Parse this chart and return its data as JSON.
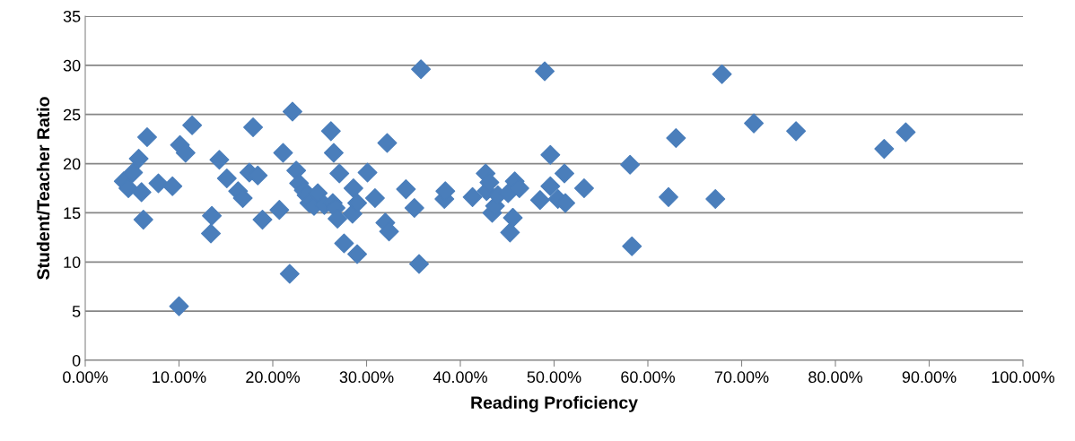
{
  "chart_data": {
    "type": "scatter",
    "xlabel": "Reading Proficiency",
    "ylabel": "Student/Teacher Ratio",
    "series": [
      {
        "color": "#4a7ebb",
        "x": [
          4.1,
          4.6,
          5.1,
          5.7,
          6.0,
          6.2,
          6.6,
          7.8,
          9.3,
          10.0,
          10.1,
          10.7,
          11.4,
          13.5,
          13.4,
          14.3,
          15.1,
          16.3,
          16.8,
          17.5,
          17.9,
          18.4,
          18.9,
          20.7,
          21.1,
          21.8,
          22.1,
          22.5,
          22.8,
          23.3,
          23.6,
          23.9,
          24.4,
          24.8,
          25.5,
          26.4,
          26.7,
          26.2,
          26.5,
          26.9,
          27.1,
          27.6,
          28.5,
          28.6,
          29.0,
          29.0,
          30.1,
          30.9,
          32.0,
          32.2,
          32.4,
          34.2,
          35.1,
          35.6,
          35.8,
          38.3,
          38.4,
          41.3,
          42.7,
          42.8,
          43.1,
          43.4,
          43.7,
          44.0,
          45.1,
          45.3,
          45.6,
          45.8,
          46.3,
          48.5,
          49.0,
          49.6,
          49.6,
          50.4,
          51.1,
          51.2,
          53.2,
          58.1,
          58.3,
          62.2,
          63.0,
          67.2,
          67.9,
          71.3,
          75.8,
          85.2,
          87.5
        ],
        "values": [
          18.2,
          17.5,
          19.1,
          20.5,
          17.1,
          14.3,
          22.7,
          18.0,
          17.7,
          5.5,
          21.9,
          21.1,
          23.9,
          14.7,
          12.9,
          20.4,
          18.5,
          17.2,
          16.5,
          19.1,
          23.7,
          18.8,
          14.3,
          15.3,
          21.1,
          8.8,
          25.3,
          19.3,
          18.0,
          17.3,
          16.8,
          16.0,
          15.7,
          17.0,
          15.8,
          16.0,
          15.5,
          23.3,
          21.1,
          14.4,
          19.0,
          11.9,
          14.9,
          17.5,
          10.8,
          16.0,
          19.1,
          16.5,
          14.0,
          22.1,
          13.1,
          17.4,
          15.5,
          9.8,
          29.6,
          16.4,
          17.2,
          16.6,
          19.0,
          17.2,
          18.1,
          15.0,
          15.7,
          16.8,
          17.0,
          13.0,
          14.5,
          18.2,
          17.5,
          16.3,
          29.4,
          17.7,
          20.9,
          16.4,
          19.0,
          16.0,
          17.5,
          19.9,
          11.6,
          16.6,
          22.6,
          16.4,
          29.1,
          24.1,
          23.3,
          21.5,
          23.2
        ]
      }
    ],
    "xlim": [
      0,
      100
    ],
    "xticks": [
      {
        "value": 0,
        "label": "0.00%"
      },
      {
        "value": 10,
        "label": "10.00%"
      },
      {
        "value": 20,
        "label": "20.00%"
      },
      {
        "value": 30,
        "label": "30.00%"
      },
      {
        "value": 40,
        "label": "40.00%"
      },
      {
        "value": 50,
        "label": "50.00%"
      },
      {
        "value": 60,
        "label": "60.00%"
      },
      {
        "value": 70,
        "label": "70.00%"
      },
      {
        "value": 80,
        "label": "80.00%"
      },
      {
        "value": 90,
        "label": "90.00%"
      },
      {
        "value": 100,
        "label": "100.00%"
      }
    ],
    "ylim": [
      0,
      35
    ],
    "yticks": [
      0,
      5,
      10,
      15,
      20,
      25,
      30,
      35
    ],
    "grid": "y",
    "marker": "diamond"
  }
}
